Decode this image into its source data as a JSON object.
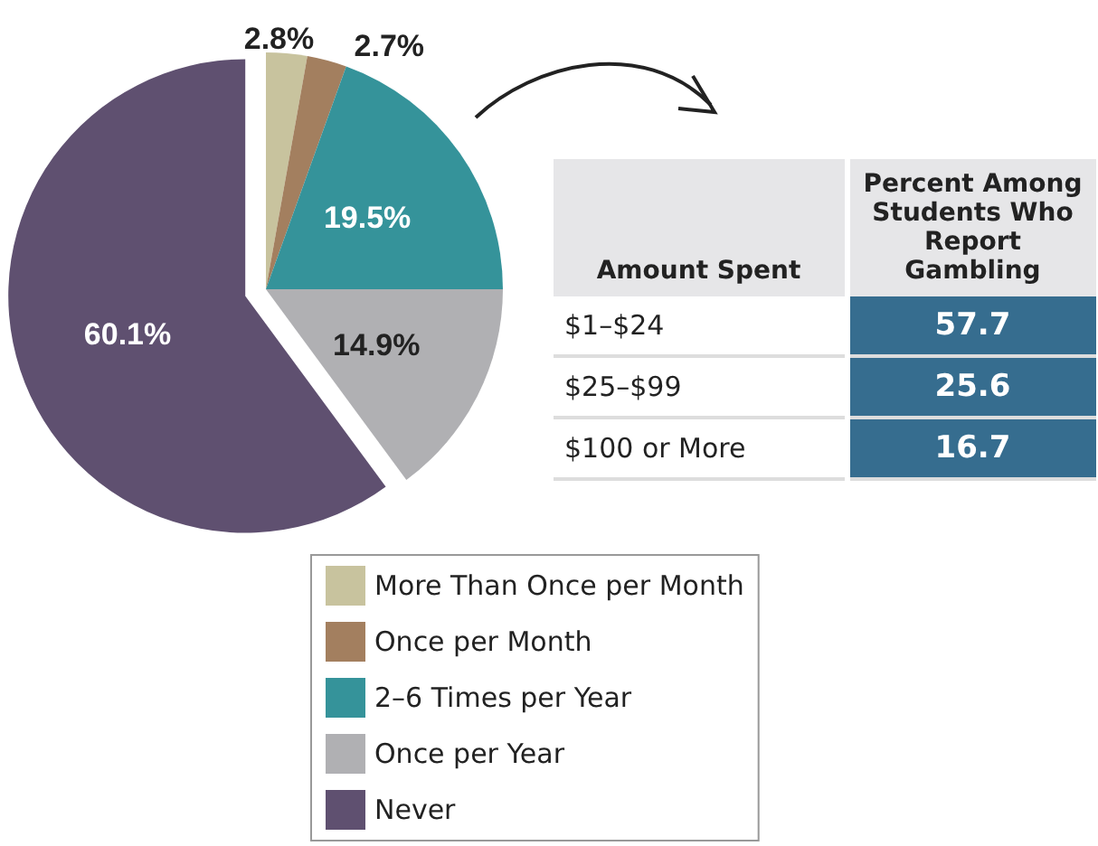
{
  "chart_data": [
    {
      "type": "pie",
      "categories": [
        "More Than Once per Month",
        "Once per Month",
        "2–6 Times per Year",
        "Once per Year",
        "Never"
      ],
      "values": [
        2.8,
        2.7,
        19.5,
        14.9,
        60.1
      ],
      "colors": [
        "#c8c39e",
        "#a37f5f",
        "#35939a",
        "#b0b0b3",
        "#5f5070"
      ],
      "value_labels": [
        "2.8%",
        "2.7%",
        "19.5%",
        "14.9%",
        "60.1%"
      ],
      "legend": "bottom"
    },
    {
      "type": "other",
      "xlabel": "Amount Spent",
      "ylabel": "Percent Among Students Who Report Gambling",
      "categories": [
        "$1–$24",
        "$25–$99",
        "$100 or More"
      ],
      "values": [
        57.7,
        25.6,
        16.7
      ],
      "color": "#366d8f",
      "data_labels": true
    }
  ]
}
